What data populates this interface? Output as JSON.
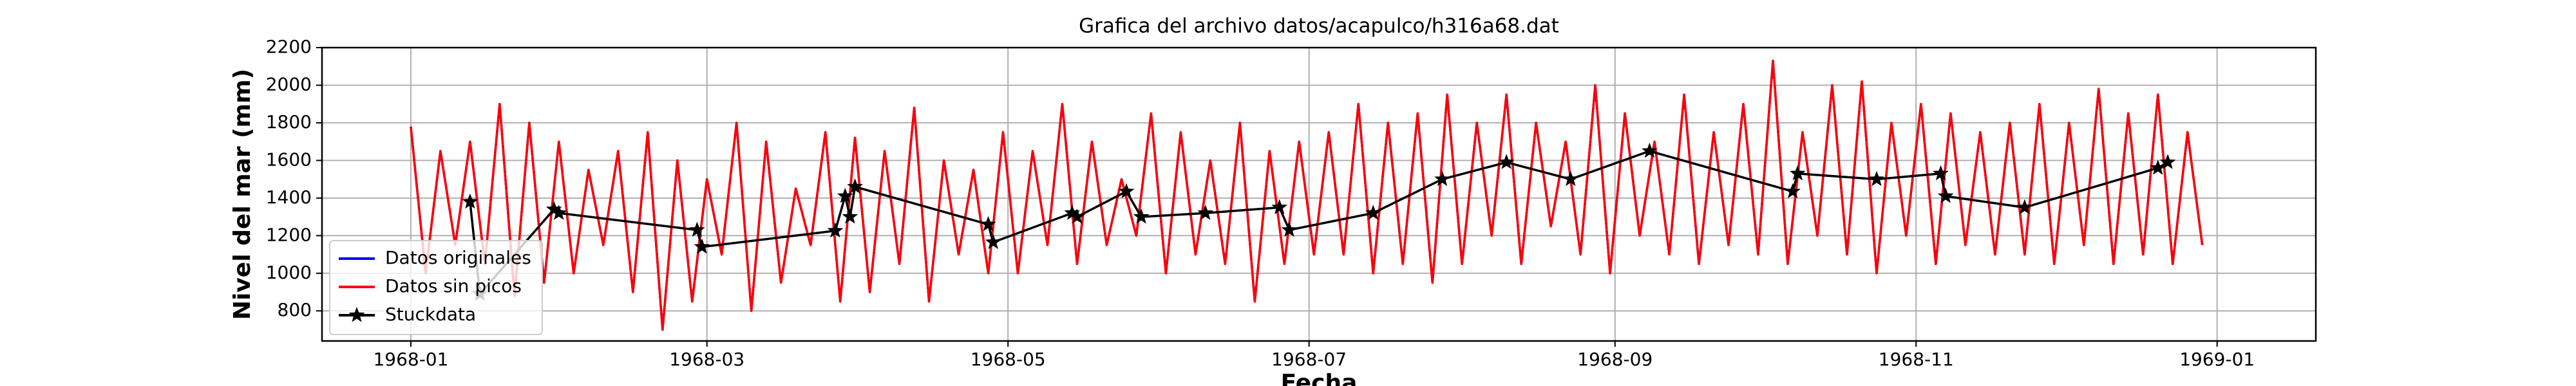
{
  "chart_data": {
    "type": "line",
    "title": "Grafica del archivo datos/acapulco/h316a68.dat",
    "xlabel": "Fecha",
    "ylabel": "Nivel del mar (mm)",
    "xlim": [
      "1967-12-14",
      "1969-01-21"
    ],
    "ylim": [
      640,
      2200
    ],
    "xticks": [
      {
        "value": "1968-01-01",
        "label": "1968-01"
      },
      {
        "value": "1968-03-01",
        "label": "1968-03"
      },
      {
        "value": "1968-05-01",
        "label": "1968-05"
      },
      {
        "value": "1968-07-01",
        "label": "1968-07"
      },
      {
        "value": "1968-09-01",
        "label": "1968-09"
      },
      {
        "value": "1968-11-01",
        "label": "1968-11"
      },
      {
        "value": "1969-01-01",
        "label": "1969-01"
      }
    ],
    "yticks": [
      800,
      1000,
      1200,
      1400,
      1600,
      1800,
      2000,
      2200
    ],
    "grid": true,
    "legend": "lower left",
    "x": [
      "1968-01-01",
      "1968-01-04",
      "1968-01-07",
      "1968-01-10",
      "1968-01-13",
      "1968-01-16",
      "1968-01-19",
      "1968-01-22",
      "1968-01-25",
      "1968-01-28",
      "1968-01-31",
      "1968-02-03",
      "1968-02-06",
      "1968-02-09",
      "1968-02-12",
      "1968-02-15",
      "1968-02-18",
      "1968-02-21",
      "1968-02-24",
      "1968-02-27",
      "1968-03-01",
      "1968-03-04",
      "1968-03-07",
      "1968-03-10",
      "1968-03-13",
      "1968-03-16",
      "1968-03-19",
      "1968-03-22",
      "1968-03-25",
      "1968-03-28",
      "1968-03-31",
      "1968-04-03",
      "1968-04-06",
      "1968-04-09",
      "1968-04-12",
      "1968-04-15",
      "1968-04-18",
      "1968-04-21",
      "1968-04-24",
      "1968-04-27",
      "1968-04-30",
      "1968-05-03",
      "1968-05-06",
      "1968-05-09",
      "1968-05-12",
      "1968-05-15",
      "1968-05-18",
      "1968-05-21",
      "1968-05-24",
      "1968-05-27",
      "1968-05-30",
      "1968-06-02",
      "1968-06-05",
      "1968-06-08",
      "1968-06-11",
      "1968-06-14",
      "1968-06-17",
      "1968-06-20",
      "1968-06-23",
      "1968-06-26",
      "1968-06-29",
      "1968-07-02",
      "1968-07-05",
      "1968-07-08",
      "1968-07-11",
      "1968-07-14",
      "1968-07-17",
      "1968-07-20",
      "1968-07-23",
      "1968-07-26",
      "1968-07-29",
      "1968-08-01",
      "1968-08-04",
      "1968-08-07",
      "1968-08-10",
      "1968-08-13",
      "1968-08-16",
      "1968-08-19",
      "1968-08-22",
      "1968-08-25",
      "1968-08-28",
      "1968-08-31",
      "1968-09-03",
      "1968-09-06",
      "1968-09-09",
      "1968-09-12",
      "1968-09-15",
      "1968-09-18",
      "1968-09-21",
      "1968-09-24",
      "1968-09-27",
      "1968-09-30",
      "1968-10-03",
      "1968-10-06",
      "1968-10-09",
      "1968-10-12",
      "1968-10-15",
      "1968-10-18",
      "1968-10-21",
      "1968-10-24",
      "1968-10-27",
      "1968-10-30",
      "1968-11-02",
      "1968-11-05",
      "1968-11-08",
      "1968-11-11",
      "1968-11-14",
      "1968-11-17",
      "1968-11-20",
      "1968-11-23",
      "1968-11-26",
      "1968-11-29",
      "1968-12-02",
      "1968-12-05",
      "1968-12-08",
      "1968-12-11",
      "1968-12-14",
      "1968-12-17",
      "1968-12-20",
      "1968-12-23",
      "1968-12-26",
      "1968-12-29"
    ],
    "series": [
      {
        "name": "Datos originales",
        "color": "#0000ff",
        "values": [
          1780,
          1000,
          1650,
          1150,
          1700,
          1050,
          1900,
          880,
          1800,
          950,
          1700,
          1000,
          1550,
          1150,
          1650,
          900,
          1750,
          700,
          1600,
          850,
          1500,
          1100,
          1800,
          800,
          1700,
          950,
          1450,
          1150,
          1750,
          850,
          1720,
          900,
          1650,
          1050,
          1880,
          850,
          1600,
          1100,
          1550,
          1000,
          1750,
          1000,
          1650,
          1150,
          1900,
          1050,
          1700,
          1150,
          1500,
          1200,
          1850,
          1000,
          1750,
          1100,
          1600,
          1050,
          1800,
          850,
          1650,
          1050,
          1700,
          1100,
          1750,
          1100,
          1900,
          1000,
          1800,
          1050,
          1850,
          950,
          1950,
          1050,
          1800,
          1200,
          1950,
          1050,
          1800,
          1250,
          1700,
          1100,
          2000,
          1000,
          1850,
          1200,
          1700,
          1100,
          1950,
          1050,
          1750,
          1150,
          1900,
          1100,
          2130,
          1050,
          1750,
          1200,
          2000,
          1100,
          2020,
          1000,
          1800,
          1200,
          1900,
          1050,
          1850,
          1150,
          1750,
          1100,
          1800,
          1100,
          1900,
          1050,
          1800,
          1150,
          1980,
          1050,
          1850,
          1100,
          1950,
          1050,
          1750,
          1150
        ]
      },
      {
        "name": "Datos sin picos",
        "color": "#ff0000",
        "values": [
          1780,
          1000,
          1650,
          1150,
          1700,
          1050,
          1900,
          880,
          1800,
          950,
          1700,
          1000,
          1550,
          1150,
          1650,
          900,
          1750,
          700,
          1600,
          850,
          1500,
          1100,
          1800,
          800,
          1700,
          950,
          1450,
          1150,
          1750,
          850,
          1720,
          900,
          1650,
          1050,
          1880,
          850,
          1600,
          1100,
          1550,
          1000,
          1750,
          1000,
          1650,
          1150,
          1900,
          1050,
          1700,
          1150,
          1500,
          1200,
          1850,
          1000,
          1750,
          1100,
          1600,
          1050,
          1800,
          850,
          1650,
          1050,
          1700,
          1100,
          1750,
          1100,
          1900,
          1000,
          1800,
          1050,
          1850,
          950,
          1950,
          1050,
          1800,
          1200,
          1950,
          1050,
          1800,
          1250,
          1700,
          1100,
          2000,
          1000,
          1850,
          1200,
          1700,
          1100,
          1950,
          1050,
          1750,
          1150,
          1900,
          1100,
          2130,
          1050,
          1750,
          1200,
          2000,
          1100,
          2020,
          1000,
          1800,
          1200,
          1900,
          1050,
          1850,
          1150,
          1750,
          1100,
          1800,
          1100,
          1900,
          1050,
          1800,
          1150,
          1980,
          1050,
          1850,
          1100,
          1950,
          1050,
          1750,
          1150
        ]
      },
      {
        "name": "Stuckdata",
        "color": "#000000",
        "marker": "star",
        "x": [
          "1968-01-13",
          "1968-01-15",
          "1968-01-30",
          "1968-01-31",
          "1968-02-28",
          "1968-02-29",
          "1968-03-27",
          "1968-03-29",
          "1968-03-30",
          "1968-03-31",
          "1968-04-27",
          "1968-04-28",
          "1968-05-14",
          "1968-05-15",
          "1968-05-25",
          "1968-05-28",
          "1968-06-10",
          "1968-06-25",
          "1968-06-27",
          "1968-07-14",
          "1968-07-28",
          "1968-08-10",
          "1968-08-23",
          "1968-09-08",
          "1968-10-07",
          "1968-10-08",
          "1968-10-24",
          "1968-11-06",
          "1968-11-07",
          "1968-11-23",
          "1968-12-20",
          "1968-12-22"
        ],
        "values": [
          1380,
          890,
          1340,
          1320,
          1230,
          1140,
          1226,
          1410,
          1300,
          1460,
          1260,
          1165,
          1320,
          1300,
          1435,
          1300,
          1320,
          1350,
          1230,
          1320,
          1500,
          1590,
          1500,
          1650,
          1435,
          1530,
          1500,
          1530,
          1410,
          1350,
          1560,
          1590
        ]
      }
    ]
  }
}
